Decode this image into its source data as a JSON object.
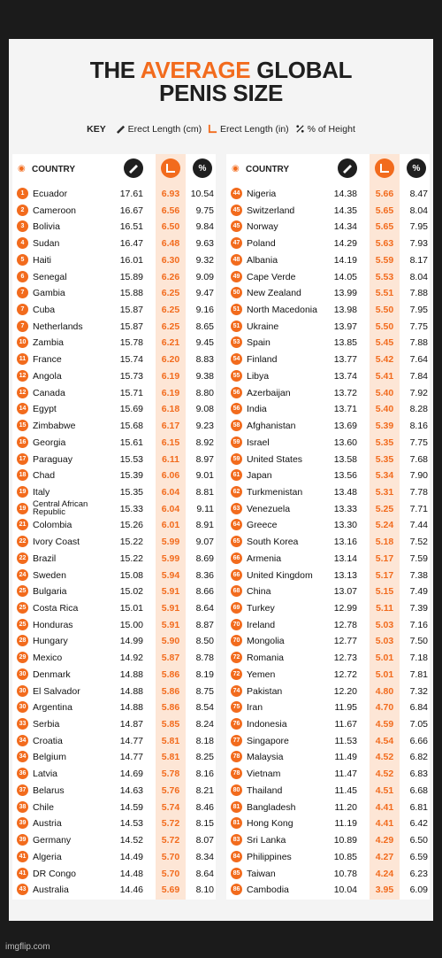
{
  "title": {
    "pre": "THE ",
    "accent": "AVERAGE",
    "post": " GLOBAL",
    "line2": "PENIS SIZE"
  },
  "key": {
    "label": "KEY",
    "item1": "Erect Length (cm)",
    "item2": "Erect Length (in)",
    "item3": "% of Height"
  },
  "header": {
    "country": "COUNTRY",
    "pct_symbol": "%"
  },
  "colors": {
    "accent": "#f26b1d",
    "highlight": "#fde6d6",
    "dark": "#1f1f1f"
  },
  "watermark": "imgflip.com",
  "chart_data": {
    "type": "table",
    "columns": [
      "Rank",
      "Country",
      "Erect Length (cm)",
      "Erect Length (in)",
      "% of Height"
    ],
    "rows": [
      [
        "1",
        "Ecuador",
        "17.61",
        "6.93",
        "10.54"
      ],
      [
        "2",
        "Cameroon",
        "16.67",
        "6.56",
        "9.75"
      ],
      [
        "3",
        "Bolivia",
        "16.51",
        "6.50",
        "9.84"
      ],
      [
        "4",
        "Sudan",
        "16.47",
        "6.48",
        "9.63"
      ],
      [
        "5",
        "Haiti",
        "16.01",
        "6.30",
        "9.32"
      ],
      [
        "6",
        "Senegal",
        "15.89",
        "6.26",
        "9.09"
      ],
      [
        "7",
        "Gambia",
        "15.88",
        "6.25",
        "9.47"
      ],
      [
        "7",
        "Cuba",
        "15.87",
        "6.25",
        "9.16"
      ],
      [
        "7",
        "Netherlands",
        "15.87",
        "6.25",
        "8.65"
      ],
      [
        "10",
        "Zambia",
        "15.78",
        "6.21",
        "9.45"
      ],
      [
        "11",
        "France",
        "15.74",
        "6.20",
        "8.83"
      ],
      [
        "12",
        "Angola",
        "15.73",
        "6.19",
        "9.38"
      ],
      [
        "12",
        "Canada",
        "15.71",
        "6.19",
        "8.80"
      ],
      [
        "14",
        "Egypt",
        "15.69",
        "6.18",
        "9.08"
      ],
      [
        "15",
        "Zimbabwe",
        "15.68",
        "6.17",
        "9.23"
      ],
      [
        "16",
        "Georgia",
        "15.61",
        "6.15",
        "8.92"
      ],
      [
        "17",
        "Paraguay",
        "15.53",
        "6.11",
        "8.97"
      ],
      [
        "18",
        "Chad",
        "15.39",
        "6.06",
        "9.01"
      ],
      [
        "19",
        "Italy",
        "15.35",
        "6.04",
        "8.81"
      ],
      [
        "19",
        "Central African Republic",
        "15.33",
        "6.04",
        "9.11"
      ],
      [
        "21",
        "Colombia",
        "15.26",
        "6.01",
        "8.91"
      ],
      [
        "22",
        "Ivory Coast",
        "15.22",
        "5.99",
        "9.07"
      ],
      [
        "22",
        "Brazil",
        "15.22",
        "5.99",
        "8.69"
      ],
      [
        "24",
        "Sweden",
        "15.08",
        "5.94",
        "8.36"
      ],
      [
        "25",
        "Bulgaria",
        "15.02",
        "5.91",
        "8.66"
      ],
      [
        "25",
        "Costa Rica",
        "15.01",
        "5.91",
        "8.64"
      ],
      [
        "25",
        "Honduras",
        "15.00",
        "5.91",
        "8.87"
      ],
      [
        "28",
        "Hungary",
        "14.99",
        "5.90",
        "8.50"
      ],
      [
        "29",
        "Mexico",
        "14.92",
        "5.87",
        "8.78"
      ],
      [
        "30",
        "Denmark",
        "14.88",
        "5.86",
        "8.19"
      ],
      [
        "30",
        "El Salvador",
        "14.88",
        "5.86",
        "8.75"
      ],
      [
        "30",
        "Argentina",
        "14.88",
        "5.86",
        "8.54"
      ],
      [
        "33",
        "Serbia",
        "14.87",
        "5.85",
        "8.24"
      ],
      [
        "34",
        "Croatia",
        "14.77",
        "5.81",
        "8.18"
      ],
      [
        "34",
        "Belgium",
        "14.77",
        "5.81",
        "8.25"
      ],
      [
        "36",
        "Latvia",
        "14.69",
        "5.78",
        "8.16"
      ],
      [
        "37",
        "Belarus",
        "14.63",
        "5.76",
        "8.21"
      ],
      [
        "38",
        "Chile",
        "14.59",
        "5.74",
        "8.46"
      ],
      [
        "39",
        "Austria",
        "14.53",
        "5.72",
        "8.15"
      ],
      [
        "39",
        "Germany",
        "14.52",
        "5.72",
        "8.07"
      ],
      [
        "41",
        "Algeria",
        "14.49",
        "5.70",
        "8.34"
      ],
      [
        "41",
        "DR Congo",
        "14.48",
        "5.70",
        "8.64"
      ],
      [
        "43",
        "Australia",
        "14.46",
        "5.69",
        "8.10"
      ],
      [
        "44",
        "Nigeria",
        "14.38",
        "5.66",
        "8.47"
      ],
      [
        "45",
        "Switzerland",
        "14.35",
        "5.65",
        "8.04"
      ],
      [
        "45",
        "Norway",
        "14.34",
        "5.65",
        "7.95"
      ],
      [
        "47",
        "Poland",
        "14.29",
        "5.63",
        "7.93"
      ],
      [
        "48",
        "Albania",
        "14.19",
        "5.59",
        "8.17"
      ],
      [
        "49",
        "Cape Verde",
        "14.05",
        "5.53",
        "8.04"
      ],
      [
        "50",
        "New Zealand",
        "13.99",
        "5.51",
        "7.88"
      ],
      [
        "51",
        "North Macedonia",
        "13.98",
        "5.50",
        "7.95"
      ],
      [
        "51",
        "Ukraine",
        "13.97",
        "5.50",
        "7.75"
      ],
      [
        "53",
        "Spain",
        "13.85",
        "5.45",
        "7.88"
      ],
      [
        "54",
        "Finland",
        "13.77",
        "5.42",
        "7.64"
      ],
      [
        "55",
        "Libya",
        "13.74",
        "5.41",
        "7.84"
      ],
      [
        "56",
        "Azerbaijan",
        "13.72",
        "5.40",
        "7.92"
      ],
      [
        "56",
        "India",
        "13.71",
        "5.40",
        "8.28"
      ],
      [
        "58",
        "Afghanistan",
        "13.69",
        "5.39",
        "8.16"
      ],
      [
        "59",
        "Israel",
        "13.60",
        "5.35",
        "7.75"
      ],
      [
        "59",
        "United States",
        "13.58",
        "5.35",
        "7.68"
      ],
      [
        "61",
        "Japan",
        "13.56",
        "5.34",
        "7.90"
      ],
      [
        "62",
        "Turkmenistan",
        "13.48",
        "5.31",
        "7.78"
      ],
      [
        "63",
        "Venezuela",
        "13.33",
        "5.25",
        "7.71"
      ],
      [
        "64",
        "Greece",
        "13.30",
        "5.24",
        "7.44"
      ],
      [
        "65",
        "South Korea",
        "13.16",
        "5.18",
        "7.52"
      ],
      [
        "66",
        "Armenia",
        "13.14",
        "5.17",
        "7.59"
      ],
      [
        "66",
        "United Kingdom",
        "13.13",
        "5.17",
        "7.38"
      ],
      [
        "68",
        "China",
        "13.07",
        "5.15",
        "7.49"
      ],
      [
        "69",
        "Turkey",
        "12.99",
        "5.11",
        "7.39"
      ],
      [
        "70",
        "Ireland",
        "12.78",
        "5.03",
        "7.16"
      ],
      [
        "70",
        "Mongolia",
        "12.77",
        "5.03",
        "7.50"
      ],
      [
        "72",
        "Romania",
        "12.73",
        "5.01",
        "7.18"
      ],
      [
        "72",
        "Yemen",
        "12.72",
        "5.01",
        "7.81"
      ],
      [
        "74",
        "Pakistan",
        "12.20",
        "4.80",
        "7.32"
      ],
      [
        "75",
        "Iran",
        "11.95",
        "4.70",
        "6.84"
      ],
      [
        "76",
        "Indonesia",
        "11.67",
        "4.59",
        "7.05"
      ],
      [
        "77",
        "Singapore",
        "11.53",
        "4.54",
        "6.66"
      ],
      [
        "78",
        "Malaysia",
        "11.49",
        "4.52",
        "6.82"
      ],
      [
        "78",
        "Vietnam",
        "11.47",
        "4.52",
        "6.83"
      ],
      [
        "80",
        "Thailand",
        "11.45",
        "4.51",
        "6.68"
      ],
      [
        "81",
        "Bangladesh",
        "11.20",
        "4.41",
        "6.81"
      ],
      [
        "81",
        "Hong Kong",
        "11.19",
        "4.41",
        "6.42"
      ],
      [
        "83",
        "Sri Lanka",
        "10.89",
        "4.29",
        "6.50"
      ],
      [
        "84",
        "Philippines",
        "10.85",
        "4.27",
        "6.59"
      ],
      [
        "85",
        "Taiwan",
        "10.78",
        "4.24",
        "6.23"
      ],
      [
        "86",
        "Cambodia",
        "10.04",
        "3.95",
        "6.09"
      ]
    ]
  }
}
